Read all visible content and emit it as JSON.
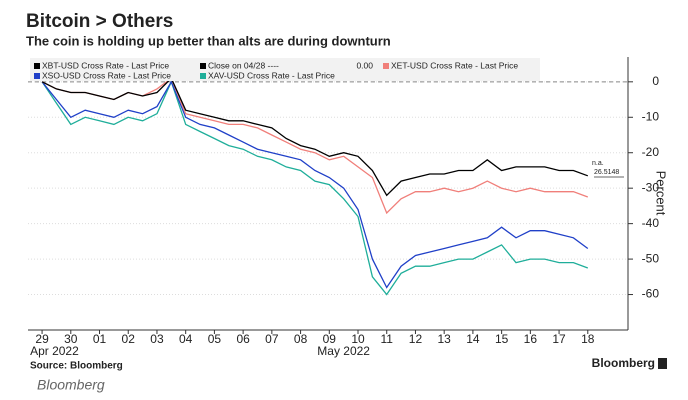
{
  "chart_data": {
    "type": "line",
    "title": "Bitcoin > Others",
    "subtitle": "The coin is holding up better than alts are during downturn",
    "y_label": "Percent",
    "source": "Source: Bloomberg",
    "brand": "Bloomberg",
    "caption": "Bloomberg",
    "annotations": [
      "n.a.",
      "26.5148"
    ],
    "reference": {
      "label": "Close on 04/28 ----",
      "value": 0,
      "value_label": "0.00",
      "color": "#888888"
    },
    "x": [
      0,
      0.5,
      1,
      1.5,
      2,
      2.5,
      3,
      3.5,
      4,
      4.5,
      5,
      5.5,
      6,
      6.5,
      7,
      7.5,
      8,
      8.5,
      9,
      9.5,
      10,
      10.5,
      11,
      11.5,
      12,
      12.5,
      13,
      13.5,
      14,
      14.5,
      15,
      15.5,
      16,
      16.5,
      17,
      17.5,
      18,
      18.5,
      19
    ],
    "xlim": [
      -0.49,
      20.4
    ],
    "xticks": [
      {
        "value": 0,
        "label": "29"
      },
      {
        "value": 1,
        "label": "30"
      },
      {
        "value": 2,
        "label": "01"
      },
      {
        "value": 3,
        "label": "02"
      },
      {
        "value": 4,
        "label": "03"
      },
      {
        "value": 5,
        "label": "04"
      },
      {
        "value": 6,
        "label": "05"
      },
      {
        "value": 7,
        "label": "06"
      },
      {
        "value": 8,
        "label": "07"
      },
      {
        "value": 9,
        "label": "08"
      },
      {
        "value": 10,
        "label": "09"
      },
      {
        "value": 11,
        "label": "10"
      },
      {
        "value": 12,
        "label": "11"
      },
      {
        "value": 13,
        "label": "12"
      },
      {
        "value": 14,
        "label": "13"
      },
      {
        "value": 15,
        "label": "14"
      },
      {
        "value": 16,
        "label": "15"
      },
      {
        "value": 17,
        "label": "16"
      },
      {
        "value": 18,
        "label": "17"
      },
      {
        "value": 19,
        "label": "18"
      }
    ],
    "x_group_labels": [
      {
        "value": 0,
        "label": "Apr 2022"
      },
      {
        "value": 10,
        "label": "May 2022"
      }
    ],
    "ylim": [
      -70,
      7
    ],
    "yticks": [
      0,
      -10,
      -20,
      -30,
      -40,
      -50,
      -60
    ],
    "grid": true,
    "series": [
      {
        "name": "XBT-USD Cross Rate - Last Price",
        "color": "#000000",
        "values": [
          0,
          -2,
          -3,
          -3,
          -4,
          -5,
          -3,
          -4,
          -3,
          1,
          -8,
          -9,
          -10,
          -11,
          -11,
          -12,
          -13,
          -16,
          -18,
          -19,
          -21,
          -20,
          -21,
          -25,
          -32,
          -28,
          -27,
          -26,
          -26,
          -25,
          -25,
          -22,
          -25,
          -24,
          -24,
          -24,
          -25,
          -25,
          -26.5
        ]
      },
      {
        "name": "XET-USD Cross Rate - Last Price",
        "color": "#f07f7a",
        "values": [
          0,
          -2,
          -3,
          -3,
          -4,
          -5,
          -3,
          -4,
          -2,
          1,
          -9,
          -10,
          -11,
          -12,
          -12,
          -13,
          -15,
          -17,
          -19,
          -20,
          -22,
          -21,
          -24,
          -27,
          -37,
          -33,
          -31,
          -31,
          -30,
          -31,
          -30,
          -28,
          -30,
          -31,
          -30,
          -31,
          -31,
          -31,
          -32.5
        ]
      },
      {
        "name": "XSO-USD Cross Rate - Last Price",
        "color": "#2040c8",
        "values": [
          0,
          -5,
          -10,
          -8,
          -9,
          -10,
          -8,
          -9,
          -7,
          0,
          -10,
          -12,
          -13,
          -15,
          -17,
          -19,
          -20,
          -21,
          -22,
          -25,
          -27,
          -30,
          -36,
          -50,
          -58,
          -52,
          -49,
          -48,
          -47,
          -46,
          -45,
          -44,
          -41,
          -44,
          -42,
          -42,
          -43,
          -44,
          -47
        ]
      },
      {
        "name": "XAV-USD Cross Rate - Last Price",
        "color": "#1fae9a",
        "values": [
          0,
          -6,
          -12,
          -10,
          -11,
          -12,
          -10,
          -11,
          -9,
          0,
          -12,
          -14,
          -16,
          -18,
          -19,
          -21,
          -22,
          -24,
          -25,
          -28,
          -29,
          -33,
          -38,
          -55,
          -60,
          -54,
          -52,
          -52,
          -51,
          -50,
          -50,
          -48,
          -46,
          -51,
          -50,
          -50,
          -51,
          -51,
          -52.5
        ]
      }
    ]
  }
}
